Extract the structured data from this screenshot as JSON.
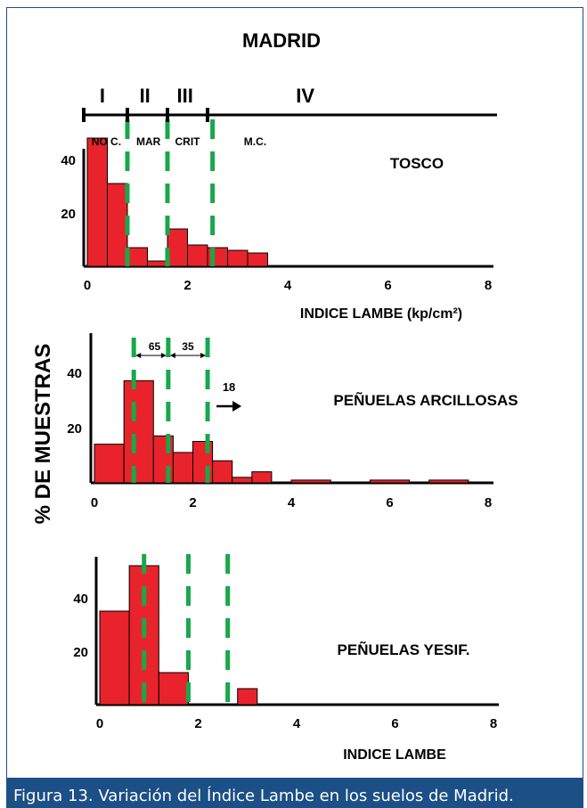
{
  "title": "MADRID",
  "y_label": "% DE MUESTRAS",
  "caption": "Figura 13. Variación del Índice Lambe en los suelos de Madrid.",
  "colors": {
    "bar": "#e8232b",
    "threshold": "#17a84a",
    "frame": "#1b4f86"
  },
  "zones": {
    "roman": [
      "I",
      "II",
      "III",
      "IV"
    ],
    "labels": [
      "NO C.",
      "MAR",
      "CRIT",
      "M.C."
    ],
    "boundaries": [
      0.8,
      1.6,
      2.4
    ]
  },
  "chart_data": [
    {
      "type": "bar",
      "name": "TOSCO",
      "xlabel": "INDICE LAMBE (kp/cm²)",
      "xticks": [
        0,
        2,
        4,
        6,
        8
      ],
      "yticks": [
        20,
        40
      ],
      "bar_width": 0.4,
      "bins": [
        0,
        0.4,
        0.8,
        1.2,
        1.6,
        2.0,
        2.4,
        2.8,
        3.2
      ],
      "values": [
        48,
        31,
        7,
        2,
        14,
        8,
        7,
        6,
        5
      ],
      "thresholds": [
        0.8,
        1.6,
        2.5
      ],
      "xlim": [
        -0.1,
        8.2
      ],
      "ylim": [
        0,
        52
      ]
    },
    {
      "type": "bar",
      "name": "PEÑUELAS ARCILLOSAS",
      "xlabel": "",
      "xticks": [
        0,
        2,
        4,
        6,
        8
      ],
      "yticks": [
        20,
        40
      ],
      "bar_width": 0.4,
      "bins": [
        0,
        0.6,
        1.2,
        1.6,
        2.0,
        2.4,
        2.8,
        3.2,
        4.0,
        5.6,
        6.8
      ],
      "bin_widths": [
        0.6,
        0.6,
        0.4,
        0.4,
        0.4,
        0.4,
        0.4,
        0.4,
        0.8,
        0.8,
        0.8
      ],
      "values": [
        14,
        37,
        17,
        11,
        15,
        8,
        2,
        4,
        1,
        1,
        1
      ],
      "thresholds": [
        0.8,
        1.5,
        2.3
      ],
      "annotations": {
        "left_pct": "65",
        "right_pct": "35",
        "beyond": "18"
      },
      "xlim": [
        -0.1,
        8.2
      ],
      "ylim": [
        0,
        55
      ]
    },
    {
      "type": "bar",
      "name": "PEÑUELAS YESIF.",
      "xlabel": "INDICE LAMBE",
      "xticks": [
        0,
        2,
        4,
        6,
        8
      ],
      "yticks": [
        20,
        40
      ],
      "bar_width": 0.4,
      "bins": [
        0,
        0.6,
        1.2,
        2.8
      ],
      "bin_widths": [
        0.6,
        0.6,
        0.6,
        0.4
      ],
      "values": [
        35,
        52,
        12,
        6
      ],
      "thresholds": [
        0.9,
        1.8,
        2.6
      ],
      "xlim": [
        -0.1,
        8.2
      ],
      "ylim": [
        0,
        52
      ]
    }
  ]
}
